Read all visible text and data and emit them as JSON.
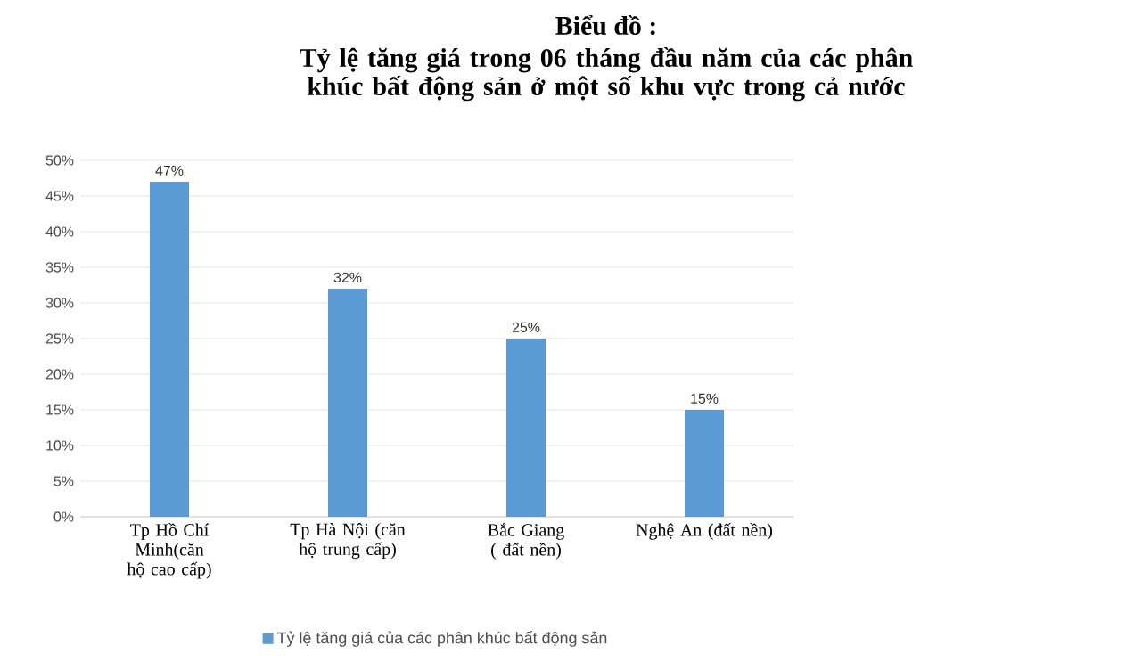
{
  "chart_data": {
    "type": "bar",
    "title": "Biểu đồ :",
    "subtitle": "Tỷ lệ tăng giá trong 06 tháng đầu năm của các phân khúc bất động sản ở một số khu vực trong cả nước",
    "categories": [
      "Tp Hồ Chí Minh(căn hộ cao cấp)",
      "Tp Hà Nội (căn hộ trung cấp)",
      "Bắc Giang ( đất nền)",
      "Nghệ An (đất nền)"
    ],
    "series": [
      {
        "name": "Tỷ lệ tăng giá của các phân khúc bất động sản",
        "color": "#5b9bd5",
        "values": [
          47,
          32,
          25,
          15
        ],
        "value_labels": [
          "47%",
          "32%",
          "25%",
          "15%"
        ]
      }
    ],
    "ylim": [
      0,
      50
    ],
    "yticks": [
      {
        "value": 0,
        "label": "0%"
      },
      {
        "value": 5,
        "label": "5%"
      },
      {
        "value": 10,
        "label": "10%"
      },
      {
        "value": 15,
        "label": "15%"
      },
      {
        "value": 20,
        "label": "20%"
      },
      {
        "value": 25,
        "label": "25%"
      },
      {
        "value": 30,
        "label": "30%"
      },
      {
        "value": 35,
        "label": "35%"
      },
      {
        "value": 40,
        "label": "40%"
      },
      {
        "value": 45,
        "label": "45%"
      },
      {
        "value": 50,
        "label": "50%"
      }
    ],
    "grid": "y",
    "legend": "bottom"
  }
}
